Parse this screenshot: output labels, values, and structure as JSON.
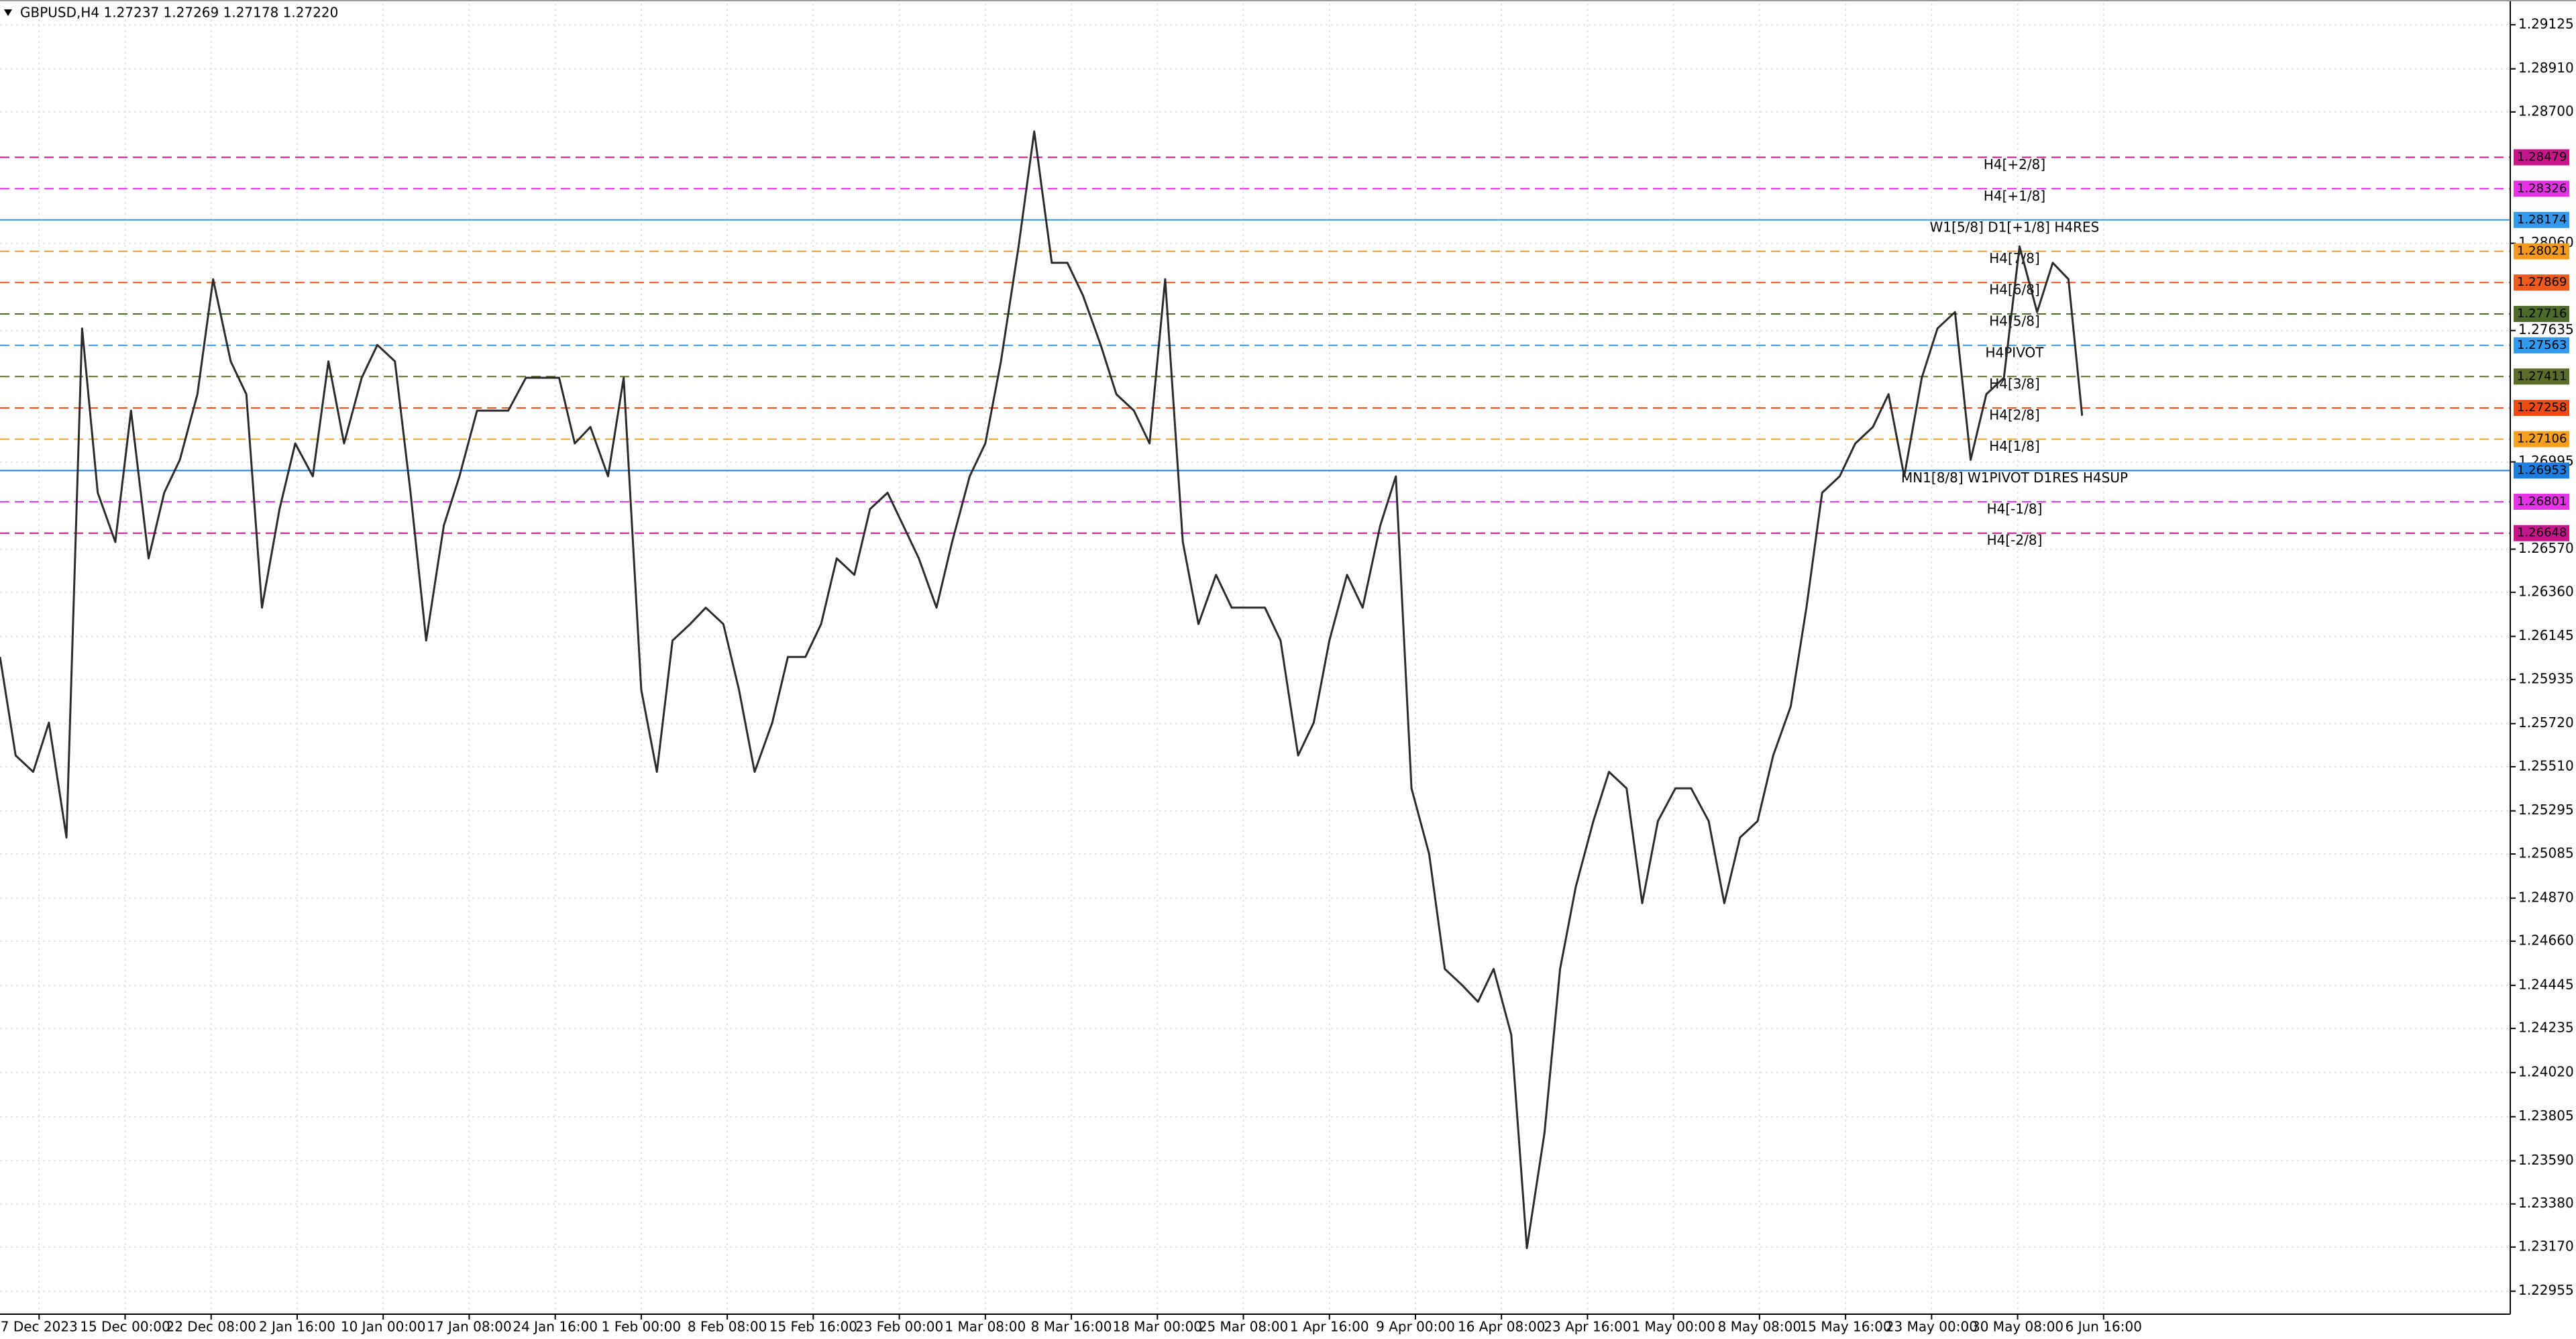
{
  "chart_data": {
    "type": "line",
    "header": "GBPUSD,H4  1.27237 1.27269 1.27178 1.27220",
    "color": "#2b2b2b",
    "grid": true,
    "xlim": [
      0,
      1284
    ],
    "ylim": [
      1.22843,
      1.29229
    ],
    "x": [
      0,
      8,
      17,
      25,
      34,
      42,
      50,
      59,
      67,
      76,
      84,
      92,
      101,
      109,
      118,
      126,
      134,
      143,
      151,
      160,
      168,
      176,
      185,
      193,
      202,
      210,
      218,
      227,
      235,
      244,
      252,
      260,
      269,
      277,
      286,
      294,
      302,
      311,
      319,
      328,
      336,
      344,
      353,
      361,
      370,
      378,
      386,
      395,
      403,
      412,
      420,
      428,
      437,
      445,
      454,
      462,
      470,
      479,
      487,
      496,
      504,
      512,
      521,
      529,
      538,
      546,
      554,
      563,
      571,
      580,
      588,
      596,
      605,
      613,
      622,
      630,
      638,
      647,
      655,
      664,
      672,
      680,
      689,
      697,
      706,
      714,
      722,
      731,
      739,
      748,
      756,
      764,
      773,
      781,
      790,
      798,
      806,
      815,
      823,
      832,
      840,
      848,
      857,
      865,
      874,
      882,
      890,
      899,
      907,
      916,
      924,
      932,
      941,
      949,
      958,
      966,
      974,
      983,
      991,
      1000,
      1008,
      1016,
      1025,
      1033,
      1042,
      1050,
      1058,
      1065
    ],
    "values": [
      1.26045,
      1.25565,
      1.25485,
      1.25725,
      1.25165,
      1.27645,
      1.26845,
      1.26605,
      1.27245,
      1.26525,
      1.26845,
      1.27005,
      1.27325,
      1.27885,
      1.27485,
      1.27325,
      1.26285,
      1.26765,
      1.27085,
      1.26925,
      1.27485,
      1.27085,
      1.27405,
      1.27565,
      1.27485,
      1.26845,
      1.26125,
      1.26685,
      1.26925,
      1.27245,
      1.27245,
      1.27245,
      1.27405,
      1.27405,
      1.27405,
      1.27085,
      1.27165,
      1.26925,
      1.27405,
      1.25885,
      1.25485,
      1.26125,
      1.26205,
      1.26285,
      1.26205,
      1.25885,
      1.25485,
      1.25725,
      1.26045,
      1.26045,
      1.26205,
      1.26525,
      1.26445,
      1.26765,
      1.26845,
      1.26685,
      1.26525,
      1.26285,
      1.26605,
      1.26925,
      1.27085,
      1.27485,
      1.28045,
      1.28605,
      1.27965,
      1.27965,
      1.27805,
      1.27565,
      1.27325,
      1.27245,
      1.27085,
      1.27885,
      1.26605,
      1.26205,
      1.26445,
      1.26285,
      1.26285,
      1.26285,
      1.26125,
      1.25565,
      1.25725,
      1.26125,
      1.26445,
      1.26285,
      1.26685,
      1.26925,
      1.25405,
      1.25085,
      1.24525,
      1.24445,
      1.24365,
      1.24525,
      1.24205,
      1.23165,
      1.23725,
      1.24525,
      1.24925,
      1.25245,
      1.25485,
      1.25405,
      1.24845,
      1.25245,
      1.25405,
      1.25405,
      1.25245,
      1.24845,
      1.25165,
      1.25245,
      1.25565,
      1.25805,
      1.26285,
      1.26845,
      1.26925,
      1.27085,
      1.27165,
      1.27325,
      1.26925,
      1.27405,
      1.27645,
      1.27725,
      1.27005,
      1.27325,
      1.27405,
      1.28045,
      1.27725,
      1.27965,
      1.27885,
      1.2722
    ],
    "yticks": [
      1.29125,
      {
        "value": 1.2891,
        "label": "1.28910"
      },
      {
        "value": 1.287,
        "label": "1.28700"
      },
      {
        "value": 1.2806,
        "label": "1.28060"
      },
      1.27635,
      1.26995,
      {
        "value": 1.2657,
        "label": "1.26570"
      },
      {
        "value": 1.2636,
        "label": "1.26360"
      },
      1.26145,
      1.25935,
      {
        "value": 1.2572,
        "label": "1.25720"
      },
      {
        "value": 1.2551,
        "label": "1.25510"
      },
      1.25295,
      1.25085,
      {
        "value": 1.2487,
        "label": "1.24870"
      },
      {
        "value": 1.2466,
        "label": "1.24660"
      },
      1.24445,
      1.24235,
      {
        "value": 1.2402,
        "label": "1.24020"
      },
      1.23805,
      {
        "value": 1.2359,
        "label": "1.23590"
      },
      {
        "value": 1.2338,
        "label": "1.23380"
      },
      {
        "value": 1.2317,
        "label": "1.23170"
      },
      1.22955
    ],
    "xticks": [
      {
        "value": 20,
        "label": "7 Dec 2023"
      },
      {
        "value": 64,
        "label": "15 Dec 00:00"
      },
      {
        "value": 108,
        "label": "22 Dec 08:00"
      },
      {
        "value": 152,
        "label": "2 Jan 16:00"
      },
      {
        "value": 196,
        "label": "10 Jan 00:00"
      },
      {
        "value": 240,
        "label": "17 Jan 08:00"
      },
      {
        "value": 284,
        "label": "24 Jan 16:00"
      },
      {
        "value": 328,
        "label": "1 Feb 00:00"
      },
      {
        "value": 372,
        "label": "8 Feb 08:00"
      },
      {
        "value": 416,
        "label": "15 Feb 16:00"
      },
      {
        "value": 460,
        "label": "23 Feb 00:00"
      },
      {
        "value": 504,
        "label": "1 Mar 08:00"
      },
      {
        "value": 548,
        "label": "8 Mar 16:00"
      },
      {
        "value": 592,
        "label": "18 Mar 00:00"
      },
      {
        "value": 636,
        "label": "25 Mar 08:00"
      },
      {
        "value": 680,
        "label": "1 Apr 16:00"
      },
      {
        "value": 724,
        "label": "9 Apr 00:00"
      },
      {
        "value": 768,
        "label": "16 Apr 08:00"
      },
      {
        "value": 812,
        "label": "23 Apr 16:00"
      },
      {
        "value": 856,
        "label": "1 May 00:00"
      },
      {
        "value": 900,
        "label": "8 May 08:00"
      },
      {
        "value": 944,
        "label": "15 May 16:00"
      },
      {
        "value": 988,
        "label": "23 May 00:00"
      },
      {
        "value": 1032,
        "label": "30 May 08:00"
      },
      {
        "value": 1076,
        "label": "6 Jun 16:00"
      }
    ],
    "levels": [
      {
        "label": "H4[+2/8]",
        "value": 1.28479,
        "color": "#c8168a",
        "style": "dashed"
      },
      {
        "label": "H4[+1/8]",
        "value": 1.28326,
        "color": "#e632e6",
        "style": "dashed"
      },
      {
        "label": "W1[5/8] D1[+1/8] H4RES",
        "value": 1.28174,
        "color": "#3399ee",
        "style": "solid"
      },
      {
        "label": "H4[7/8]",
        "value": 1.28021,
        "color": "#f29a1e",
        "style": "dashed"
      },
      {
        "label": "H4[6/8]",
        "value": 1.27869,
        "color": "#f05a1e",
        "style": "dashed"
      },
      {
        "label": "H4[5/8]",
        "value": 1.27716,
        "color": "#4d6b2a",
        "style": "dashed"
      },
      {
        "label": "H4PIVOT",
        "value": 1.27563,
        "color": "#3399ee",
        "style": "dashed"
      },
      {
        "label": "H4[3/8]",
        "value": 1.27411,
        "color": "#5a6b2a",
        "style": "dashed"
      },
      {
        "label": "H4[2/8]",
        "value": 1.27258,
        "color": "#f04a14",
        "style": "dashed"
      },
      {
        "label": "H4[1/8]",
        "value": 1.27106,
        "color": "#f5a01e",
        "style": "dashed"
      },
      {
        "label": "MN1[8/8] W1PIVOT D1RES H4SUP",
        "value": 1.26953,
        "color": "#1e7fe0",
        "style": "solid"
      },
      {
        "label": "H4[-1/8]",
        "value": 1.26801,
        "color": "#e632e6",
        "style": "dashed"
      },
      {
        "label": "H4[-2/8]",
        "value": 1.26648,
        "color": "#c8168a",
        "style": "dashed"
      }
    ]
  }
}
